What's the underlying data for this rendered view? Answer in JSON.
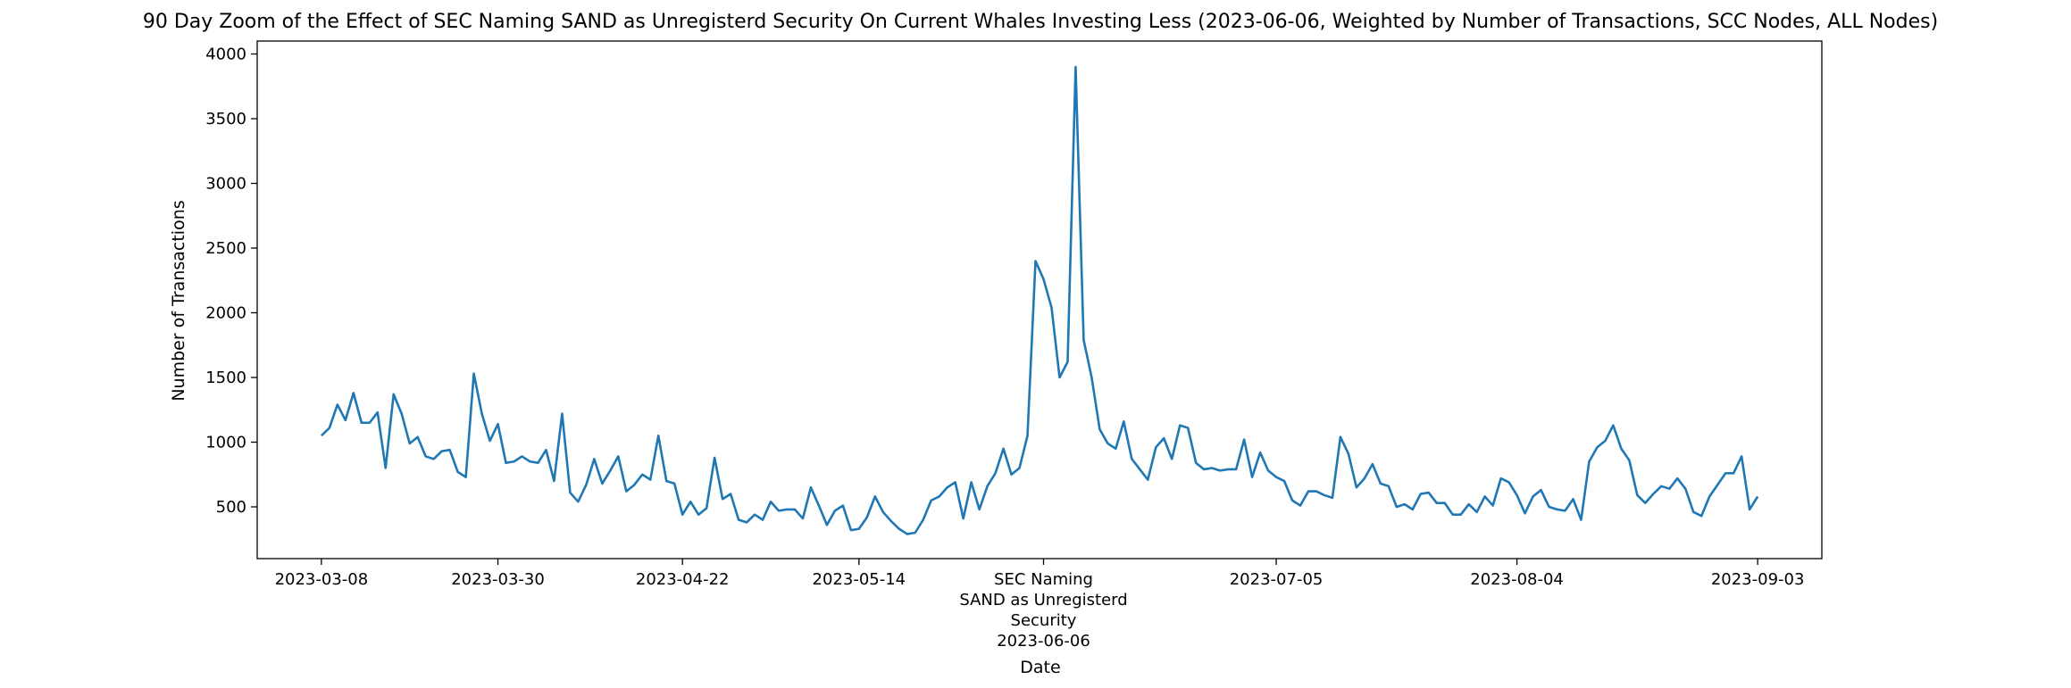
{
  "chart_data": {
    "type": "line",
    "title": "90 Day Zoom of the Effect of SEC Naming SAND as Unregisterd Security On Current Whales Investing Less (2023-06-06, Weighted by Number of Transactions, SCC Nodes, ALL Nodes)",
    "xlabel": "Date",
    "ylabel": "Number of Transactions",
    "x_start": "2023-03-08",
    "x_end": "2023-09-03",
    "xlim": [
      "2023-02-28",
      "2023-09-11"
    ],
    "ylim": [
      100,
      4100
    ],
    "grid": false,
    "line_color": "#1f77b4",
    "x_ticks": [
      {
        "date": "2023-03-08",
        "lines": [
          "2023-03-08"
        ]
      },
      {
        "date": "2023-03-30",
        "lines": [
          "2023-03-30"
        ]
      },
      {
        "date": "2023-04-22",
        "lines": [
          "2023-04-22"
        ]
      },
      {
        "date": "2023-05-14",
        "lines": [
          "2023-05-14"
        ]
      },
      {
        "date": "2023-06-06",
        "lines": [
          "SEC Naming",
          "SAND as Unregisterd",
          "Security",
          "2023-06-06"
        ]
      },
      {
        "date": "2023-07-05",
        "lines": [
          "2023-07-05"
        ]
      },
      {
        "date": "2023-08-04",
        "lines": [
          "2023-08-04"
        ]
      },
      {
        "date": "2023-09-03",
        "lines": [
          "2023-09-03"
        ]
      }
    ],
    "y_ticks": [
      500,
      1000,
      1500,
      2000,
      2500,
      3000,
      3500,
      4000
    ],
    "series": [
      {
        "values": [
          1050,
          1110,
          1290,
          1170,
          1380,
          1150,
          1150,
          1230,
          800,
          1370,
          1220,
          990,
          1040,
          890,
          870,
          930,
          940,
          770,
          730,
          1530,
          1220,
          1010,
          1140,
          840,
          850,
          890,
          850,
          840,
          940,
          700,
          1220,
          610,
          540,
          670,
          870,
          680,
          780,
          890,
          620,
          670,
          750,
          710,
          1050,
          700,
          680,
          440,
          540,
          440,
          490,
          880,
          560,
          600,
          400,
          380,
          440,
          400,
          540,
          470,
          480,
          480,
          410,
          650,
          510,
          360,
          470,
          510,
          320,
          330,
          420,
          580,
          460,
          390,
          330,
          290,
          300,
          400,
          550,
          580,
          650,
          690,
          410,
          690,
          480,
          660,
          760,
          950,
          750,
          800,
          1050,
          2400,
          2260,
          2040,
          1500,
          1620,
          3900,
          1790,
          1500,
          1100,
          990,
          950,
          1160,
          870,
          790,
          710,
          960,
          1030,
          870,
          1130,
          1110,
          840,
          790,
          800,
          780,
          790,
          790,
          1020,
          730,
          920,
          780,
          730,
          700,
          550,
          510,
          620,
          620,
          590,
          570,
          1040,
          910,
          650,
          720,
          830,
          680,
          660,
          500,
          520,
          480,
          600,
          610,
          530,
          530,
          440,
          440,
          520,
          460,
          580,
          510,
          720,
          690,
          590,
          450,
          580,
          630,
          500,
          480,
          470,
          560,
          400,
          850,
          960,
          1010,
          1130,
          950,
          860,
          590,
          530,
          600,
          660,
          640,
          720,
          640,
          460,
          430,
          580,
          670,
          760,
          760,
          890,
          480,
          580
        ]
      }
    ]
  }
}
